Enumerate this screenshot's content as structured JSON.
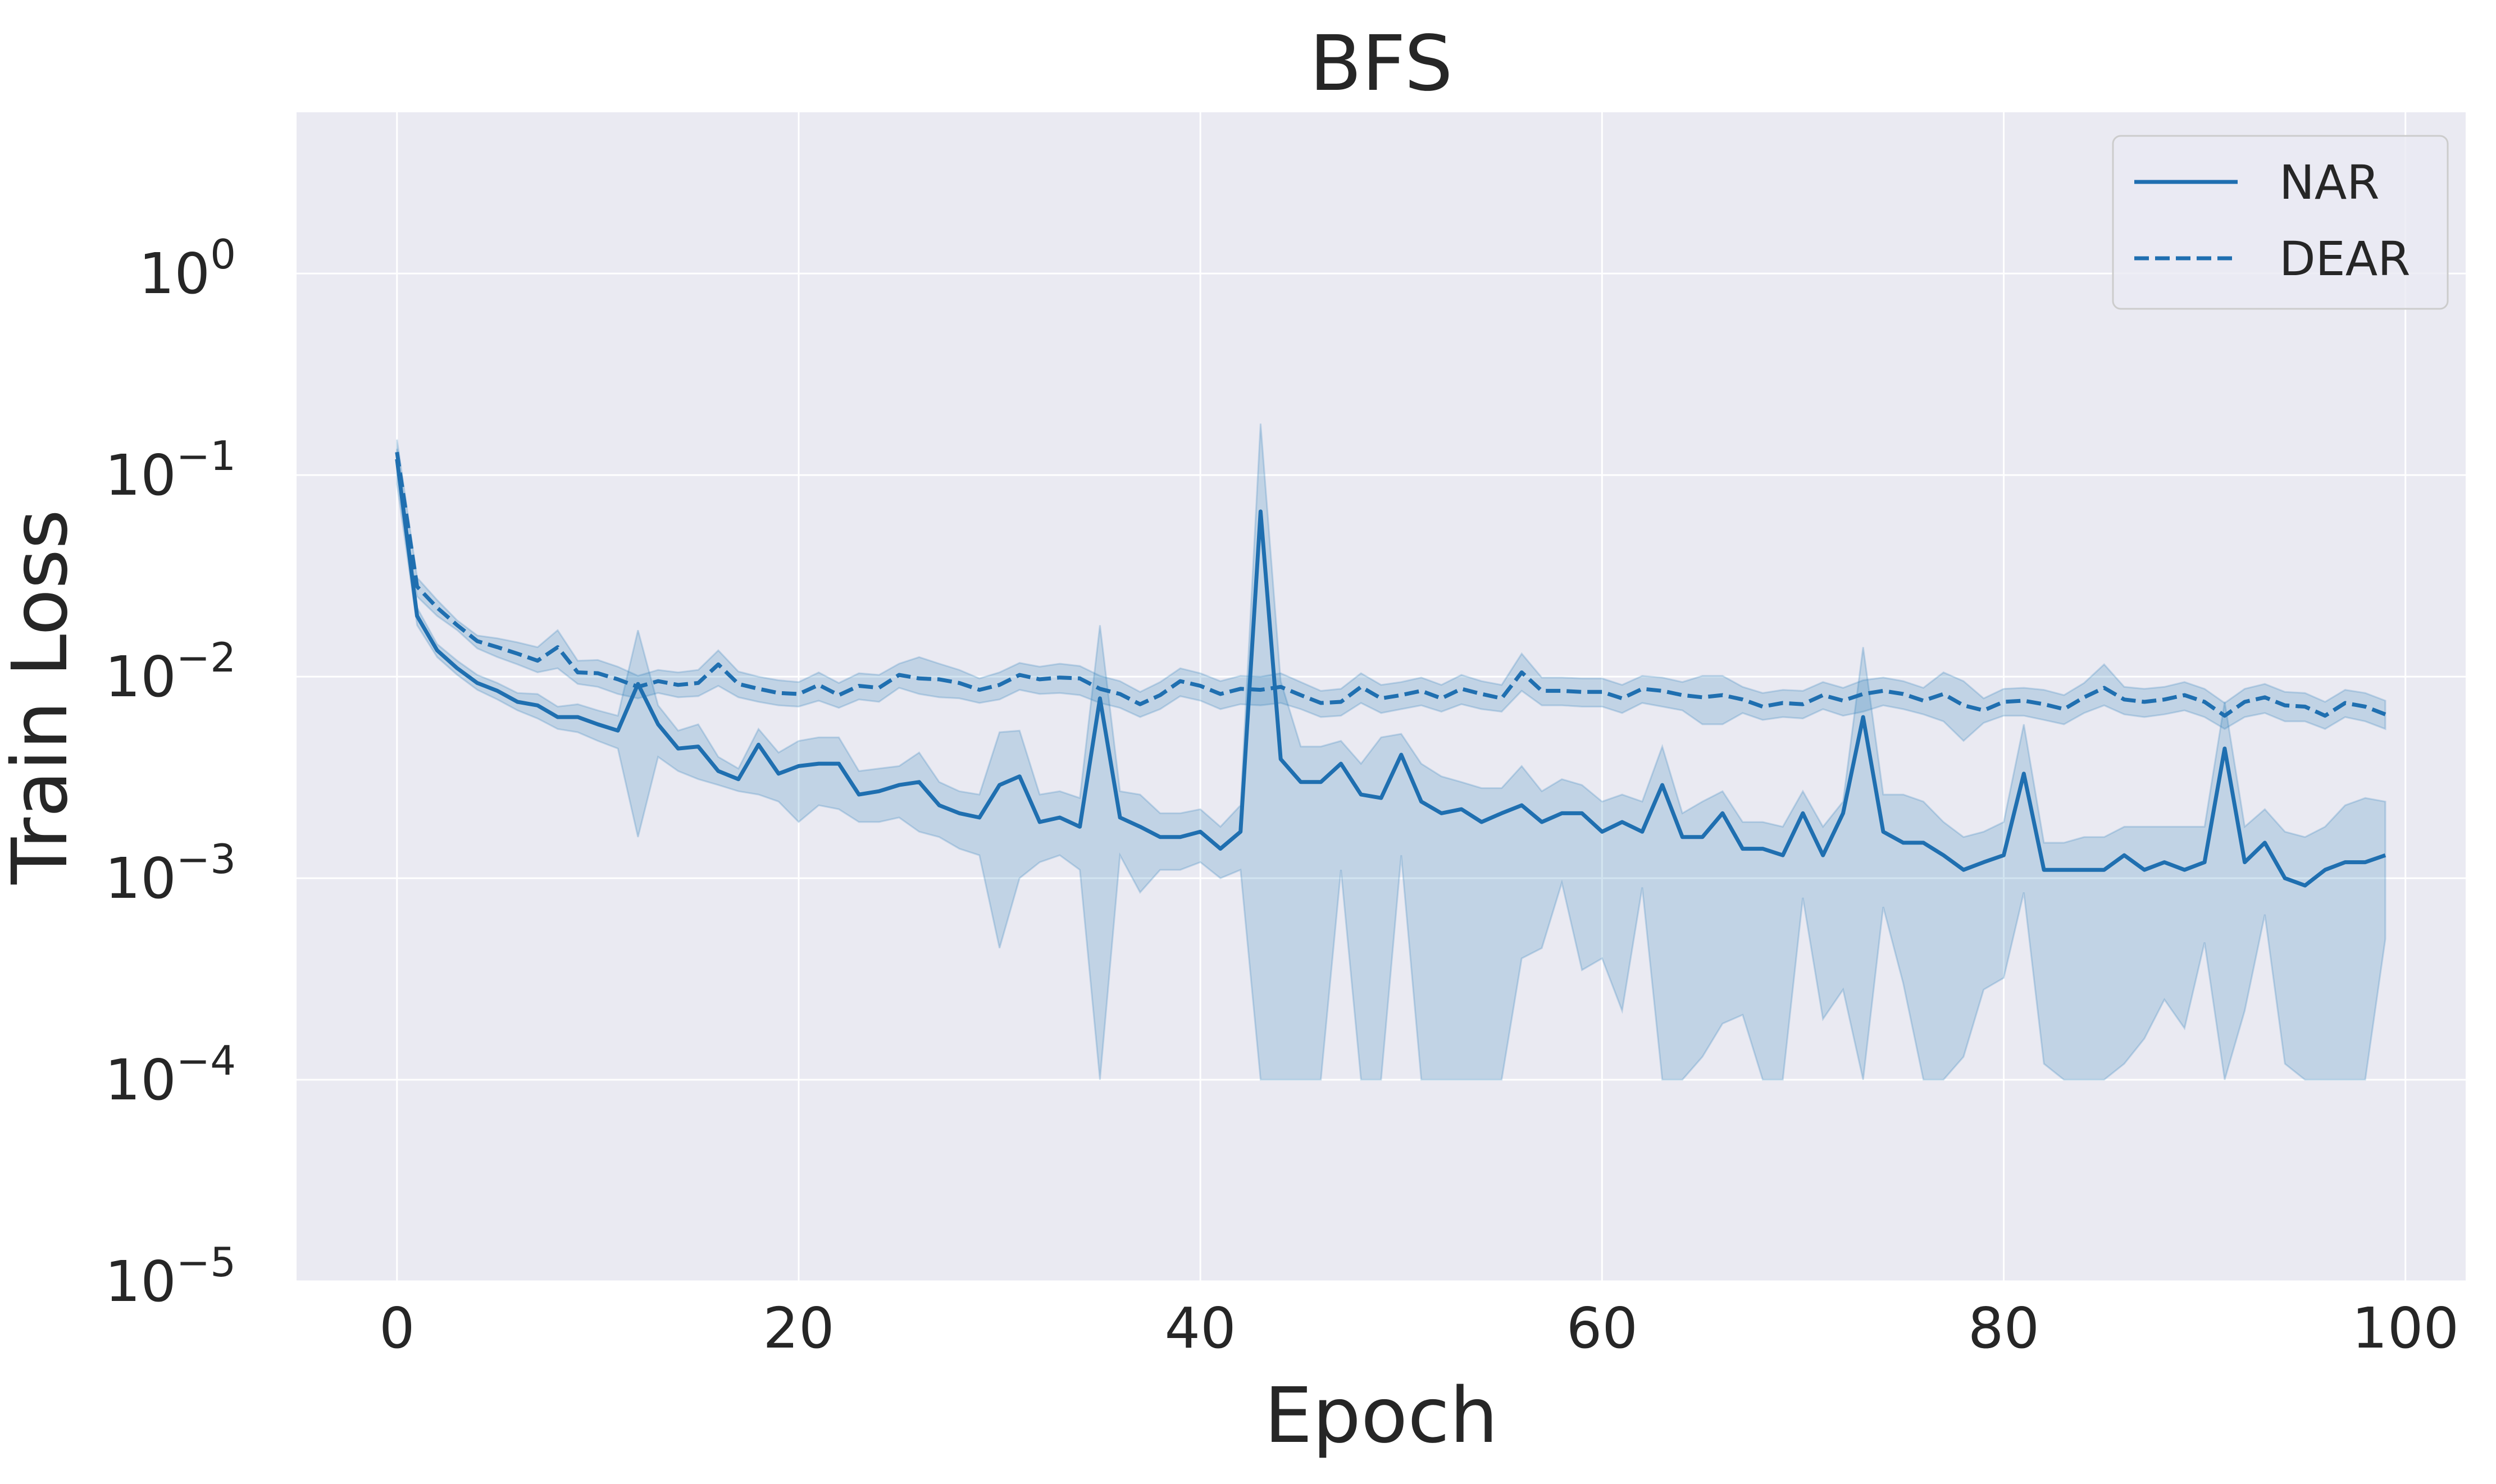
{
  "chart_data": {
    "type": "line",
    "title": "BFS",
    "xlabel": "Epoch",
    "ylabel": "Train Loss",
    "xlim": [
      -5,
      103
    ],
    "ylim_log10": [
      -5,
      0.8
    ],
    "yscale": "log",
    "grid": true,
    "legend_position": "top-right",
    "colors": {
      "line": "#1f6fb0",
      "band": "#1f77b4",
      "background": "#eaeaf2",
      "grid": "#ffffff",
      "text": "#262626"
    },
    "x_ticks": [
      0,
      20,
      40,
      60,
      80,
      100
    ],
    "x_tick_labels": [
      "0",
      "20",
      "40",
      "60",
      "80",
      "100"
    ],
    "y_ticks": [
      {
        "exp": 0,
        "base": "10",
        "power": "0"
      },
      {
        "exp": -1,
        "base": "10",
        "power": "−1"
      },
      {
        "exp": -2,
        "base": "10",
        "power": "−2"
      },
      {
        "exp": -3,
        "base": "10",
        "power": "−3"
      },
      {
        "exp": -4,
        "base": "10",
        "power": "−4"
      },
      {
        "exp": -5,
        "base": "10",
        "power": "−5"
      }
    ],
    "series": [
      {
        "name": "NAR",
        "style": "solid",
        "x": [
          0,
          1,
          2,
          3,
          4,
          5,
          6,
          7,
          8,
          9,
          10,
          11,
          12,
          13,
          14,
          15,
          16,
          17,
          18,
          19,
          20,
          21,
          22,
          23,
          24,
          25,
          26,
          27,
          28,
          29,
          30,
          31,
          32,
          33,
          34,
          35,
          36,
          37,
          38,
          39,
          40,
          41,
          42,
          43,
          44,
          45,
          46,
          47,
          48,
          49,
          50,
          51,
          52,
          53,
          54,
          55,
          56,
          57,
          58,
          59,
          60,
          61,
          62,
          63,
          64,
          65,
          66,
          67,
          68,
          69,
          70,
          71,
          72,
          73,
          74,
          75,
          76,
          77,
          78,
          79,
          80,
          81,
          82,
          83,
          84,
          85,
          86,
          87,
          88,
          89,
          90,
          91,
          92,
          93,
          94,
          95,
          96,
          97,
          98,
          99
        ],
        "values": [
          0.12,
          0.02,
          0.0135,
          0.011,
          0.0093,
          0.0085,
          0.0075,
          0.0072,
          0.0063,
          0.0063,
          0.0058,
          0.0054,
          0.0092,
          0.0058,
          0.0044,
          0.0045,
          0.0034,
          0.0031,
          0.0046,
          0.0033,
          0.0036,
          0.0037,
          0.0037,
          0.0026,
          0.0027,
          0.0029,
          0.003,
          0.0023,
          0.0021,
          0.002,
          0.0029,
          0.0032,
          0.0019,
          0.002,
          0.0018,
          0.0078,
          0.002,
          0.0018,
          0.0016,
          0.0016,
          0.0017,
          0.0014,
          0.0017,
          0.066,
          0.0039,
          0.003,
          0.003,
          0.0037,
          0.0026,
          0.0025,
          0.0041,
          0.0024,
          0.0021,
          0.0022,
          0.0019,
          0.0021,
          0.0023,
          0.0019,
          0.0021,
          0.0021,
          0.0017,
          0.0019,
          0.0017,
          0.0029,
          0.0016,
          0.0016,
          0.0021,
          0.0014,
          0.0014,
          0.0013,
          0.0021,
          0.0013,
          0.0021,
          0.0063,
          0.0017,
          0.0015,
          0.0015,
          0.0013,
          0.0011,
          0.0012,
          0.0013,
          0.0033,
          0.0011,
          0.0011,
          0.0011,
          0.0011,
          0.0013,
          0.0011,
          0.0012,
          0.0011,
          0.0012,
          0.0044,
          0.0012,
          0.0015,
          0.001,
          0.00092,
          0.0011,
          0.0012,
          0.0012,
          0.0013
        ],
        "lower": [
          0.09,
          0.018,
          0.0125,
          0.0102,
          0.0086,
          0.0077,
          0.0068,
          0.0062,
          0.0055,
          0.0053,
          0.0048,
          0.0044,
          0.0016,
          0.004,
          0.0034,
          0.0031,
          0.0029,
          0.0027,
          0.0026,
          0.0024,
          0.0019,
          0.0023,
          0.0022,
          0.0019,
          0.0019,
          0.002,
          0.0017,
          0.0016,
          0.0014,
          0.0013,
          0.00045,
          0.001,
          0.0012,
          0.0013,
          0.0011,
          0.0001,
          0.0013,
          0.00085,
          0.0011,
          0.0011,
          0.0012,
          0.001,
          0.0011,
          0.0001,
          0.0001,
          0.0001,
          0.0001,
          0.0011,
          0.0001,
          0.0001,
          0.0013,
          0.0001,
          0.0001,
          0.0001,
          0.0001,
          0.0001,
          0.0004,
          0.00045,
          0.00095,
          0.00035,
          0.0004,
          0.00022,
          0.0009,
          0.0001,
          0.0001,
          0.00013,
          0.00019,
          0.00021,
          0.0001,
          0.0001,
          0.0008,
          0.0002,
          0.00028,
          0.0001,
          0.00072,
          0.0003,
          0.0001,
          0.0001,
          0.00013,
          0.00028,
          0.00032,
          0.00085,
          0.00012,
          0.0001,
          0.0001,
          0.0001,
          0.00012,
          0.00016,
          0.00025,
          0.00018,
          0.00048,
          0.0001,
          0.00022,
          0.00066,
          0.00012,
          0.0001,
          0.0001,
          0.0001,
          0.0001,
          0.0005
        ],
        "upper": [
          0.135,
          0.022,
          0.0145,
          0.012,
          0.0102,
          0.0093,
          0.0083,
          0.0082,
          0.0071,
          0.0073,
          0.0068,
          0.0064,
          0.017,
          0.0072,
          0.0054,
          0.0058,
          0.004,
          0.0035,
          0.0055,
          0.0042,
          0.0048,
          0.005,
          0.005,
          0.0034,
          0.0035,
          0.0036,
          0.0042,
          0.003,
          0.0027,
          0.0026,
          0.0053,
          0.0054,
          0.0026,
          0.0027,
          0.0025,
          0.018,
          0.0027,
          0.0026,
          0.0021,
          0.0021,
          0.0022,
          0.0018,
          0.0023,
          0.18,
          0.0095,
          0.0045,
          0.0045,
          0.0048,
          0.0037,
          0.005,
          0.0052,
          0.0037,
          0.0032,
          0.003,
          0.0028,
          0.0028,
          0.0036,
          0.0027,
          0.0031,
          0.0029,
          0.0024,
          0.0026,
          0.0024,
          0.0045,
          0.0021,
          0.0024,
          0.0027,
          0.0019,
          0.0019,
          0.0018,
          0.0027,
          0.0018,
          0.0024,
          0.014,
          0.0026,
          0.0026,
          0.0024,
          0.0019,
          0.0016,
          0.0017,
          0.0019,
          0.0058,
          0.0015,
          0.0015,
          0.0016,
          0.0016,
          0.0018,
          0.0018,
          0.0018,
          0.0018,
          0.0018,
          0.0075,
          0.0018,
          0.0022,
          0.0017,
          0.0016,
          0.0018,
          0.0023,
          0.0025,
          0.0024
        ]
      },
      {
        "name": "DEAR",
        "style": "dashed",
        "x": [
          0,
          1,
          2,
          3,
          4,
          5,
          6,
          7,
          8,
          9,
          10,
          11,
          12,
          13,
          14,
          15,
          16,
          17,
          18,
          19,
          20,
          21,
          22,
          23,
          24,
          25,
          26,
          27,
          28,
          29,
          30,
          31,
          32,
          33,
          34,
          35,
          36,
          37,
          38,
          39,
          40,
          41,
          42,
          43,
          44,
          45,
          46,
          47,
          48,
          49,
          50,
          51,
          52,
          53,
          54,
          55,
          56,
          57,
          58,
          59,
          60,
          61,
          62,
          63,
          64,
          65,
          66,
          67,
          68,
          69,
          70,
          71,
          72,
          73,
          74,
          75,
          76,
          77,
          78,
          79,
          80,
          81,
          82,
          83,
          84,
          85,
          86,
          87,
          88,
          89,
          90,
          91,
          92,
          93,
          94,
          95,
          96,
          97,
          98,
          99
        ],
        "values": [
          0.13,
          0.028,
          0.022,
          0.018,
          0.015,
          0.014,
          0.013,
          0.012,
          0.014,
          0.0105,
          0.0104,
          0.0097,
          0.0089,
          0.0095,
          0.0091,
          0.0093,
          0.0115,
          0.0092,
          0.0087,
          0.0083,
          0.0082,
          0.0091,
          0.0081,
          0.009,
          0.0088,
          0.0102,
          0.0098,
          0.0097,
          0.0093,
          0.0086,
          0.0091,
          0.0102,
          0.0097,
          0.0099,
          0.0098,
          0.0087,
          0.0082,
          0.0073,
          0.0081,
          0.0095,
          0.009,
          0.0082,
          0.0087,
          0.0086,
          0.0089,
          0.0081,
          0.0074,
          0.0075,
          0.0089,
          0.0078,
          0.0081,
          0.0085,
          0.0078,
          0.0087,
          0.0082,
          0.0078,
          0.0105,
          0.0085,
          0.0085,
          0.0084,
          0.0084,
          0.0078,
          0.0087,
          0.0085,
          0.0081,
          0.0079,
          0.0081,
          0.0077,
          0.0071,
          0.0074,
          0.0073,
          0.0081,
          0.0076,
          0.0082,
          0.0085,
          0.0082,
          0.0076,
          0.0082,
          0.0072,
          0.0068,
          0.0075,
          0.0076,
          0.0073,
          0.0069,
          0.0079,
          0.0088,
          0.0077,
          0.0075,
          0.0077,
          0.0081,
          0.0075,
          0.0064,
          0.0075,
          0.0079,
          0.0072,
          0.0071,
          0.0064,
          0.0074,
          0.0071,
          0.0065
        ],
        "lower": [
          0.11,
          0.025,
          0.02,
          0.017,
          0.0138,
          0.0125,
          0.0115,
          0.0105,
          0.011,
          0.0092,
          0.0089,
          0.0082,
          0.0078,
          0.0083,
          0.0079,
          0.008,
          0.009,
          0.0079,
          0.0075,
          0.0072,
          0.0071,
          0.0076,
          0.007,
          0.0077,
          0.0075,
          0.0088,
          0.0082,
          0.0079,
          0.0078,
          0.0074,
          0.0077,
          0.0086,
          0.0082,
          0.0083,
          0.0081,
          0.0074,
          0.007,
          0.0063,
          0.0069,
          0.008,
          0.0076,
          0.0069,
          0.0073,
          0.0072,
          0.0074,
          0.0069,
          0.0063,
          0.0064,
          0.0074,
          0.0066,
          0.0069,
          0.0072,
          0.0067,
          0.0073,
          0.0069,
          0.0067,
          0.0085,
          0.0072,
          0.0072,
          0.0071,
          0.0071,
          0.0066,
          0.0074,
          0.0071,
          0.0068,
          0.0058,
          0.0058,
          0.0066,
          0.0061,
          0.0063,
          0.0062,
          0.0069,
          0.0064,
          0.0067,
          0.0072,
          0.0069,
          0.0065,
          0.006,
          0.0048,
          0.0059,
          0.0064,
          0.0064,
          0.0061,
          0.0058,
          0.0066,
          0.0072,
          0.0065,
          0.0063,
          0.0065,
          0.0068,
          0.0063,
          0.0055,
          0.0063,
          0.0066,
          0.006,
          0.006,
          0.0055,
          0.0063,
          0.006,
          0.0055
        ],
        "upper": [
          0.15,
          0.031,
          0.024,
          0.019,
          0.016,
          0.0155,
          0.0148,
          0.014,
          0.017,
          0.012,
          0.0121,
          0.0112,
          0.0101,
          0.0108,
          0.0105,
          0.0108,
          0.0135,
          0.0106,
          0.01,
          0.0096,
          0.0094,
          0.0105,
          0.0093,
          0.0104,
          0.0102,
          0.0116,
          0.0125,
          0.0116,
          0.0108,
          0.0098,
          0.0105,
          0.0117,
          0.0112,
          0.0116,
          0.0113,
          0.0101,
          0.0095,
          0.0084,
          0.0094,
          0.011,
          0.0104,
          0.0095,
          0.0101,
          0.01,
          0.0104,
          0.0094,
          0.0085,
          0.0087,
          0.0104,
          0.0091,
          0.0094,
          0.0099,
          0.0091,
          0.0102,
          0.0095,
          0.0091,
          0.013,
          0.0099,
          0.0099,
          0.0098,
          0.0098,
          0.0091,
          0.0101,
          0.0099,
          0.0094,
          0.0101,
          0.0101,
          0.0089,
          0.0083,
          0.0086,
          0.0085,
          0.0094,
          0.0088,
          0.0096,
          0.0099,
          0.0095,
          0.0088,
          0.0105,
          0.0095,
          0.0078,
          0.0087,
          0.0088,
          0.0086,
          0.0081,
          0.0093,
          0.0115,
          0.0089,
          0.0087,
          0.0089,
          0.0094,
          0.0087,
          0.0074,
          0.0087,
          0.0092,
          0.0084,
          0.0083,
          0.0075,
          0.0086,
          0.0083,
          0.0076
        ]
      }
    ]
  }
}
